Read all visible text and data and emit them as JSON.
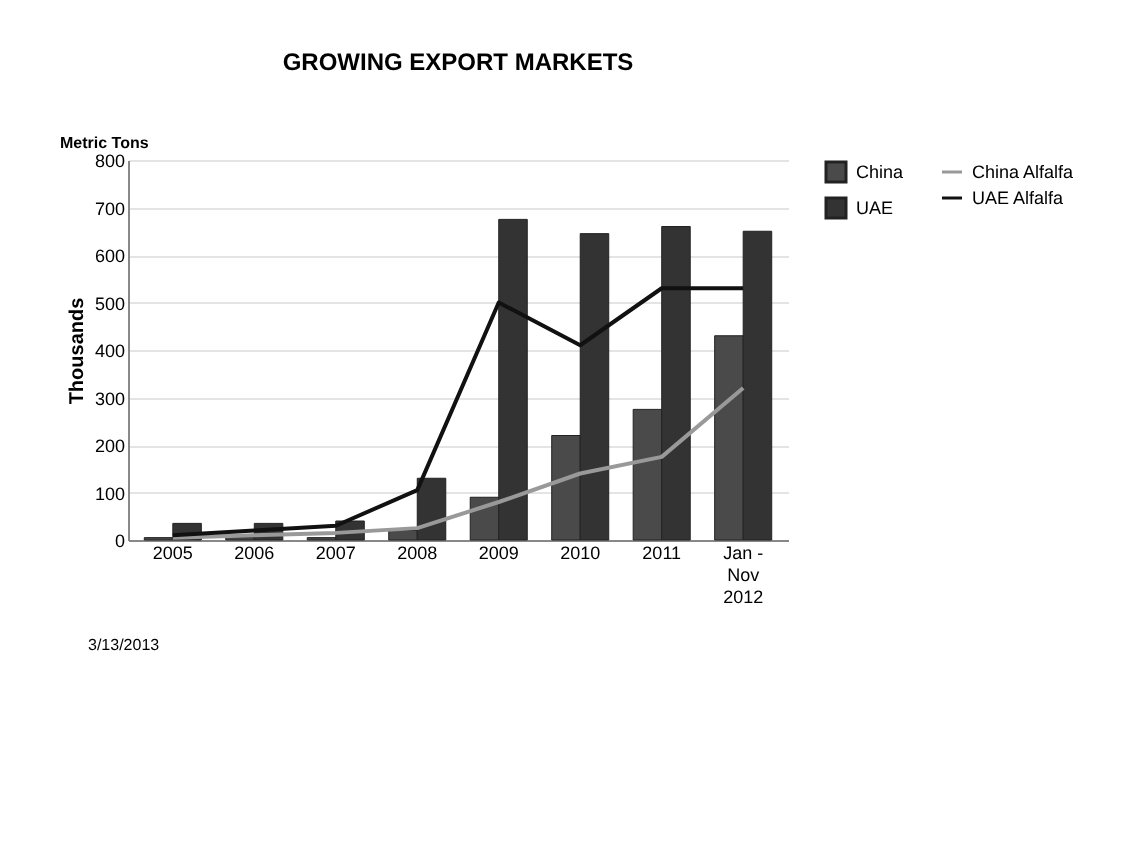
{
  "chart_data": {
    "type": "bar",
    "title": "GROWING EXPORT MARKETS",
    "ylabel": "Thousands",
    "annotations": [
      "Metric Tons",
      "3/13/2013"
    ],
    "categories": [
      "2005",
      "2006",
      "2007",
      "2008",
      "2009",
      "2010",
      "2011",
      "Jan -\nNov\n2012"
    ],
    "series": [
      {
        "name": "China",
        "color": "#4a4a4a",
        "values": [
          5,
          5,
          5,
          20,
          90,
          220,
          275,
          430
        ]
      },
      {
        "name": "UAE",
        "color": "#333333",
        "values": [
          35,
          35,
          40,
          130,
          675,
          645,
          660,
          650
        ]
      },
      {
        "name": "China Alfalfa",
        "type": "line",
        "color": "#999999",
        "values": [
          5,
          10,
          15,
          25,
          80,
          140,
          175,
          320
        ]
      },
      {
        "name": "UAE Alfalfa",
        "type": "line",
        "color": "#111111",
        "values": [
          10,
          20,
          30,
          105,
          500,
          410,
          530,
          530
        ]
      }
    ],
    "ylim": [
      0,
      800
    ],
    "yticks": [
      0,
      100,
      200,
      300,
      400,
      500,
      600,
      700,
      800
    ],
    "grid": "y",
    "legend": "right"
  }
}
